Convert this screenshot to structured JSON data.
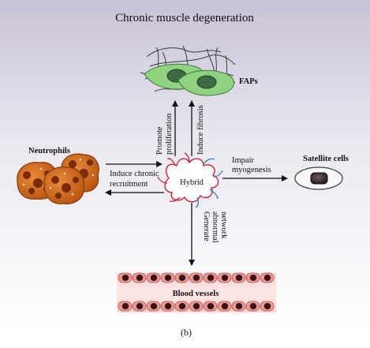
{
  "title": "Chronic muscle degeneration",
  "nodes": {
    "faps": "FAPs",
    "neutrophils": "Neutrophils",
    "hybrid": "Hybrid",
    "satellite": "Satellite cells",
    "blood": "Blood vessels"
  },
  "edges": {
    "promote": [
      "Promote",
      "proliferation"
    ],
    "fibrosis": "Induce fibrosis",
    "recruit": [
      "Induce chronic",
      "recruitment"
    ],
    "impair": [
      "Impair",
      "myogenesis"
    ],
    "network": [
      "Generate",
      "abnormal",
      "network"
    ]
  },
  "caption": "(b)",
  "colors": {
    "background_top": "#cbc6d8",
    "fap_cell": "#8fd27f",
    "fap_nucleus": "#3c6b46",
    "neutrophil": "#c96318",
    "neutrophil_nucleus": "#7a2a08",
    "hybrid_outline": "#cc2233",
    "hybrid_outline_2": "#2a7fb8",
    "vessel_cell": "#e89a96",
    "vessel_nucleus": "#3a1414",
    "satellite_nucleus": "#2a1a20"
  }
}
